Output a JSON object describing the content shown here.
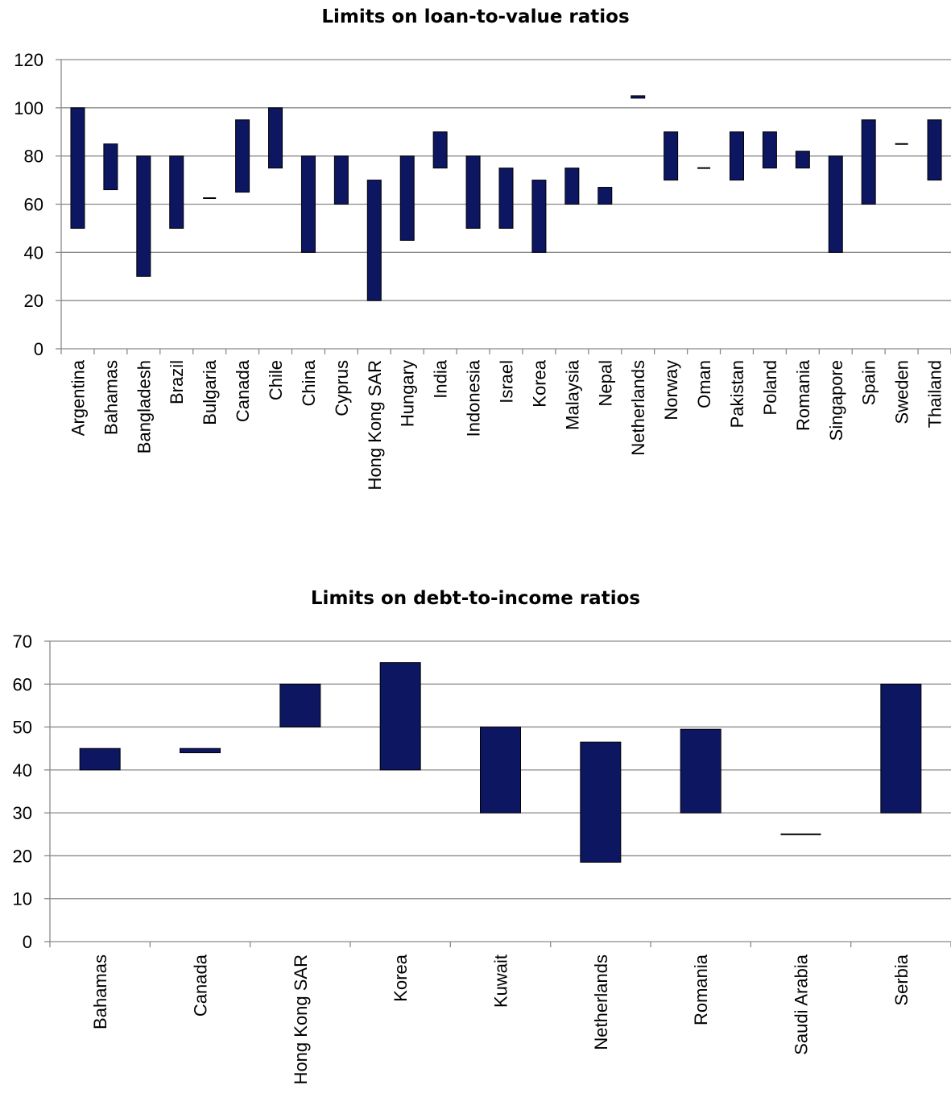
{
  "charts": [
    {
      "chart_data": {
        "type": "bar",
        "subtype": "floating-range",
        "title": "Limits on loan-to-value ratios",
        "categories": [
          "Argentina",
          "Bahamas",
          "Bangladesh",
          "Brazil",
          "Bulgaria",
          "Canada",
          "Chile",
          "China",
          "Cyprus",
          "Hong Kong SAR",
          "Hungary",
          "India",
          "Indonesia",
          "Israel",
          "Korea",
          "Malaysia",
          "Nepal",
          "Netherlands",
          "Norway",
          "Oman",
          "Pakistan",
          "Poland",
          "Romania",
          "Singapore",
          "Spain",
          "Sweden",
          "Thailand"
        ],
        "ranges": [
          [
            50,
            100
          ],
          [
            66,
            85
          ],
          [
            30,
            80
          ],
          [
            50,
            80
          ],
          [
            62.5,
            62.5
          ],
          [
            65,
            95
          ],
          [
            75,
            100
          ],
          [
            40,
            80
          ],
          [
            60,
            80
          ],
          [
            20,
            70
          ],
          [
            45,
            80
          ],
          [
            75,
            90
          ],
          [
            50,
            80
          ],
          [
            50,
            75
          ],
          [
            40,
            70
          ],
          [
            60,
            75
          ],
          [
            60,
            67
          ],
          [
            104,
            105
          ],
          [
            70,
            90
          ],
          [
            75,
            75
          ],
          [
            70,
            90
          ],
          [
            75,
            90
          ],
          [
            75,
            82
          ],
          [
            40,
            80
          ],
          [
            60,
            95
          ],
          [
            85,
            85
          ],
          [
            70,
            95
          ]
        ],
        "ylim": [
          0,
          120
        ],
        "yticks": [
          0,
          20,
          40,
          60,
          80,
          100,
          120
        ],
        "grid": true,
        "bar_color": "#0d1660"
      }
    },
    {
      "chart_data": {
        "type": "bar",
        "subtype": "floating-range",
        "title": "Limits on debt-to-income ratios",
        "categories": [
          "Bahamas",
          "Canada",
          "Hong Kong SAR",
          "Korea",
          "Kuwait",
          "Netherlands",
          "Romania",
          "Saudi Arabia",
          "Serbia"
        ],
        "ranges": [
          [
            40,
            45
          ],
          [
            44,
            45
          ],
          [
            50,
            60
          ],
          [
            40,
            65
          ],
          [
            30,
            50
          ],
          [
            18.5,
            46.5
          ],
          [
            30,
            49.5
          ],
          [
            25,
            25
          ],
          [
            30,
            60
          ]
        ],
        "ylim": [
          0,
          70
        ],
        "yticks": [
          0,
          10,
          20,
          30,
          40,
          50,
          60,
          70
        ],
        "grid": true,
        "bar_color": "#0d1660"
      }
    }
  ]
}
